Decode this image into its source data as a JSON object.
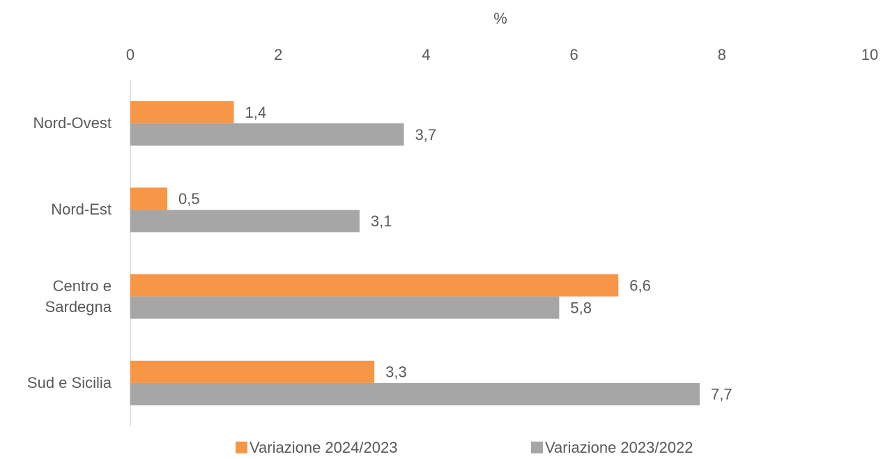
{
  "chart_data": {
    "type": "bar",
    "orientation": "horizontal",
    "x_label": "%",
    "categories": [
      "Nord-Ovest",
      "Nord-Est",
      "Centro e Sardegna",
      "Sud e Sicilia"
    ],
    "series": [
      {
        "name": "Variazione 2024/2023",
        "color": "#f79646",
        "values": [
          1.4,
          0.5,
          6.6,
          3.3
        ],
        "value_labels": [
          "1,4",
          "0,5",
          "6,6",
          "3,3"
        ]
      },
      {
        "name": "Variazione 2023/2022",
        "color": "#a6a6a6",
        "values": [
          3.7,
          3.1,
          5.8,
          7.7
        ],
        "value_labels": [
          "3,7",
          "3,1",
          "5,8",
          "7,7"
        ]
      }
    ],
    "xlim": [
      0,
      10
    ],
    "xticks": [
      0,
      2,
      4,
      6,
      8,
      10
    ],
    "grid": false,
    "legend": "bottom"
  }
}
